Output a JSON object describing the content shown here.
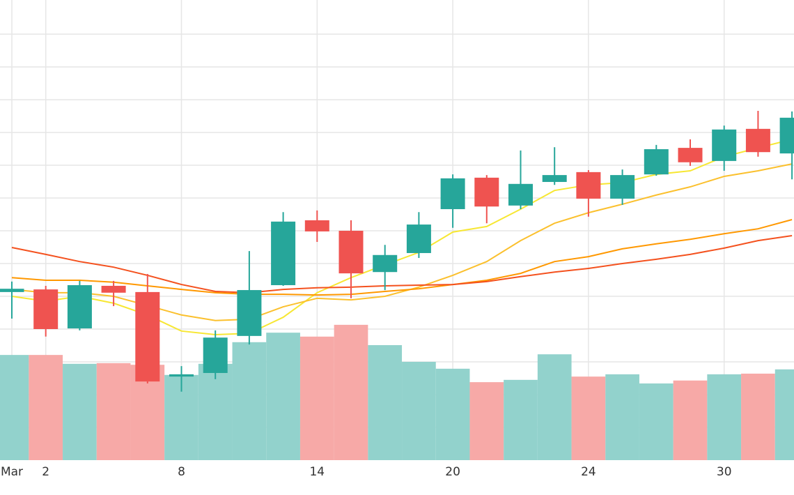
{
  "chart_data": {
    "type": "candlestick",
    "categories": [
      "Mar",
      "2",
      null,
      null,
      null,
      "8",
      null,
      null,
      null,
      "14",
      null,
      null,
      null,
      "20",
      null,
      null,
      null,
      "24",
      null,
      null,
      null,
      "30",
      null,
      null
    ],
    "open": [
      51.3,
      52.1,
      40.2,
      53.2,
      51.3,
      25.5,
      26.6,
      37.9,
      53.4,
      73.2,
      70.0,
      57.4,
      63.2,
      76.6,
      86.2,
      77.7,
      84.9,
      87.9,
      79.8,
      87.2,
      95.3,
      91.3,
      101.1,
      93.6
    ],
    "high": [
      54.5,
      53.2,
      54.7,
      54.7,
      56.8,
      28.7,
      39.6,
      63.8,
      75.7,
      76.2,
      73.2,
      65.7,
      75.7,
      87.2,
      87.0,
      94.5,
      95.5,
      88.5,
      88.7,
      96.2,
      97.9,
      102.1,
      106.6,
      106.4
    ],
    "low": [
      43.2,
      37.7,
      39.6,
      47.0,
      23.4,
      20.9,
      24.7,
      35.3,
      53.2,
      66.6,
      49.4,
      51.9,
      61.7,
      70.9,
      72.3,
      76.6,
      84.0,
      74.3,
      77.9,
      86.8,
      89.8,
      88.3,
      92.6,
      85.7
    ],
    "close": [
      52.3,
      40.0,
      53.4,
      51.1,
      24.0,
      26.2,
      37.4,
      51.9,
      72.8,
      69.8,
      57.0,
      62.6,
      71.9,
      86.0,
      77.4,
      84.3,
      87.0,
      79.8,
      87.0,
      94.9,
      90.9,
      100.9,
      94.0,
      104.5
    ],
    "volume": [
      32.1,
      32.1,
      29.4,
      29.6,
      29.1,
      26.0,
      29.4,
      36.0,
      38.9,
      37.7,
      41.3,
      35.1,
      30.0,
      27.9,
      23.8,
      24.5,
      32.3,
      25.5,
      26.2,
      23.4,
      24.3,
      26.2,
      26.4,
      27.7
    ],
    "up_color": "#26a69a",
    "down_color": "#ef5350",
    "volume_up_color": "#92d2cc",
    "volume_down_color": "#f7a9a7",
    "moving_averages": [
      {
        "color": "#f7e733",
        "values": [
          50.0,
          48.5,
          50.0,
          47.9,
          44.3,
          39.4,
          38.3,
          38.7,
          43.6,
          51.1,
          55.7,
          59.6,
          63.4,
          69.6,
          71.3,
          76.6,
          82.3,
          84.0,
          84.7,
          87.2,
          88.3,
          92.6,
          95.3,
          97.9
        ]
      },
      {
        "color": "#fbc02d",
        "values": [
          52.1,
          51.1,
          51.1,
          50.0,
          47.2,
          44.3,
          42.6,
          43.0,
          46.8,
          49.4,
          48.9,
          50.0,
          52.8,
          56.4,
          60.6,
          67.0,
          72.3,
          75.5,
          78.1,
          80.9,
          83.4,
          86.6,
          88.3,
          90.4
        ]
      },
      {
        "color": "#ff9800",
        "values": [
          55.7,
          54.9,
          54.9,
          54.3,
          53.2,
          52.1,
          51.1,
          50.6,
          50.6,
          50.4,
          50.6,
          51.5,
          52.3,
          53.6,
          54.9,
          57.0,
          60.6,
          62.1,
          64.5,
          66.0,
          67.4,
          69.1,
          70.6,
          73.4
        ]
      },
      {
        "color": "#f4511e",
        "values": [
          64.9,
          62.8,
          60.6,
          58.9,
          56.4,
          53.6,
          51.5,
          51.1,
          52.1,
          52.6,
          52.8,
          53.2,
          53.4,
          53.6,
          54.5,
          56.0,
          57.4,
          58.5,
          60.0,
          61.3,
          62.8,
          64.7,
          67.0,
          68.5
        ]
      }
    ],
    "ylim": [
      0,
      140
    ],
    "yticks": [
      10,
      20,
      30,
      40,
      50,
      60,
      70,
      80,
      90,
      100,
      110,
      120,
      130
    ],
    "grid": true
  }
}
